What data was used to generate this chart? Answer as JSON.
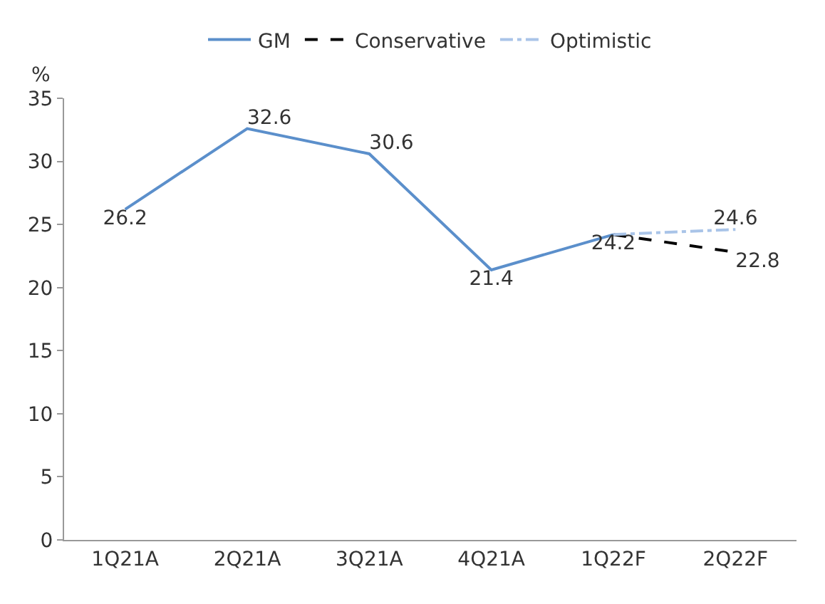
{
  "chart_data": {
    "type": "line",
    "ylabel": "%",
    "categories": [
      "1Q21A",
      "2Q21A",
      "3Q21A",
      "4Q21A",
      "1Q22F",
      "2Q22F"
    ],
    "series": [
      {
        "name": "GM",
        "color": "#5b8fcb",
        "line_style": "solid",
        "values": [
          26.2,
          32.6,
          30.6,
          21.4,
          24.2,
          null
        ],
        "value_labels": [
          "26.2",
          "32.6",
          "30.6",
          "21.4",
          "24.2",
          null
        ]
      },
      {
        "name": "Conservative",
        "color": "#000000",
        "line_style": "dashed",
        "values": [
          null,
          null,
          null,
          null,
          24.2,
          22.8
        ],
        "value_labels": [
          null,
          null,
          null,
          null,
          null,
          "22.8"
        ]
      },
      {
        "name": "Optimistic",
        "color": "#a9c4e8",
        "line_style": "dashdot",
        "values": [
          null,
          null,
          null,
          null,
          24.2,
          24.6
        ],
        "value_labels": [
          null,
          null,
          null,
          null,
          null,
          "24.6"
        ]
      }
    ],
    "ylim": [
      0,
      35
    ],
    "yticks": [
      0,
      5,
      10,
      15,
      20,
      25,
      30,
      35
    ],
    "grid": false,
    "legend": "top",
    "marker": "none"
  }
}
